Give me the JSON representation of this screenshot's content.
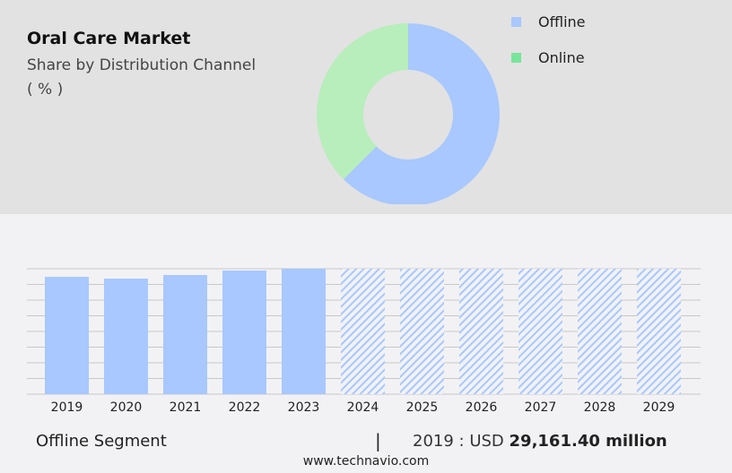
{
  "header": {
    "title": "Oral Care Market",
    "subtitle": "Share by Distribution Channel",
    "unit": "( % )"
  },
  "footer": {
    "segment": "Offline Segment",
    "separator": "|",
    "year_label": "2019 : USD",
    "value": "29,161.40 million",
    "site": "www.technavio.com"
  },
  "chart_data": [
    {
      "type": "pie",
      "variant": "donut",
      "legend_position": "top-right",
      "series": [
        {
          "name": "Offline",
          "value": 62.5,
          "color": "#a8c8ff"
        },
        {
          "name": "Online",
          "value": 37.5,
          "color": "#b7eebb",
          "legend_color": "#77e59a"
        }
      ]
    },
    {
      "type": "bar",
      "categories": [
        "2019",
        "2020",
        "2021",
        "2022",
        "2023",
        "2024",
        "2025",
        "2026",
        "2027",
        "2028",
        "2029"
      ],
      "values": [
        29161.4,
        28720,
        29610,
        30720,
        31170,
        null,
        null,
        null,
        null,
        null,
        null
      ],
      "forecast": [
        "2024",
        "2025",
        "2026",
        "2027",
        "2028",
        "2029"
      ],
      "ylim": [
        0,
        31170
      ],
      "grid": true,
      "color": "#a8c8ff",
      "unit": "USD million"
    }
  ]
}
